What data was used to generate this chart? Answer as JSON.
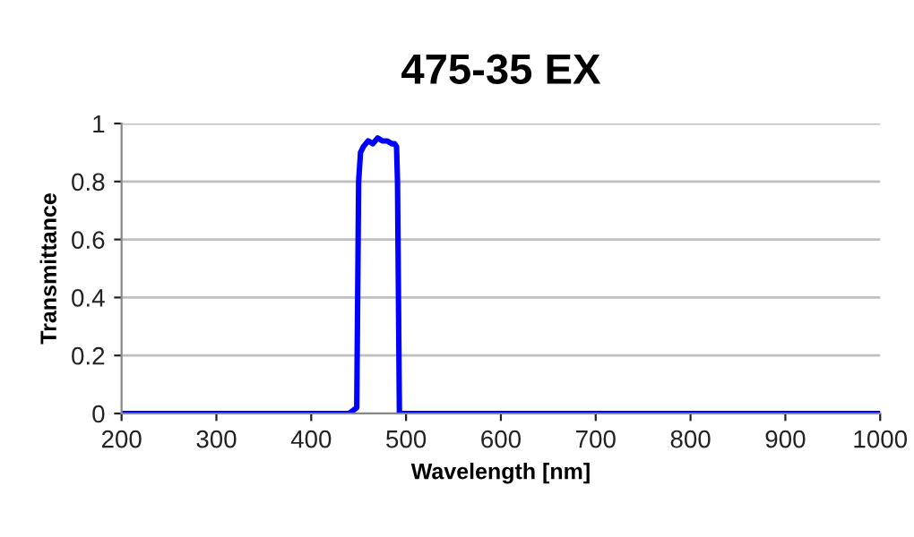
{
  "chart_data": {
    "type": "line",
    "title": "475-35 EX",
    "xlabel": "Wavelength [nm]",
    "ylabel": "Transmittance",
    "x": [
      200,
      440,
      448,
      450,
      452,
      455,
      460,
      465,
      470,
      475,
      480,
      485,
      488,
      490,
      491,
      493,
      500,
      1000
    ],
    "series": [
      {
        "color": "#0000ff",
        "values": [
          0,
          0,
          0.02,
          0.8,
          0.9,
          0.92,
          0.94,
          0.93,
          0.95,
          0.94,
          0.94,
          0.93,
          0.93,
          0.92,
          0.8,
          0,
          0,
          0
        ]
      }
    ],
    "xlim": [
      200,
      1000
    ],
    "ylim": [
      0,
      1
    ],
    "xticks": [
      200,
      300,
      400,
      500,
      600,
      700,
      800,
      900,
      1000
    ],
    "yticks": [
      0,
      0.2,
      0.4,
      0.6,
      0.8,
      1
    ],
    "grid": "y",
    "legend": false,
    "marker": "none",
    "line_style": "solid"
  }
}
